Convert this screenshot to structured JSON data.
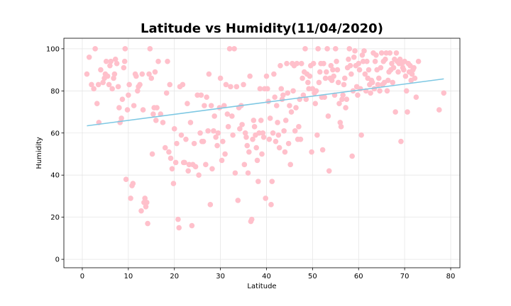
{
  "chart_data": {
    "type": "scatter",
    "title": "Latitude vs Humidity(11/04/2020)",
    "xlabel": "Latitude",
    "ylabel": "Humidity",
    "xlim": [
      -4,
      82
    ],
    "ylim": [
      -4,
      105
    ],
    "xticks": [
      0,
      10,
      20,
      30,
      40,
      50,
      60,
      70,
      80
    ],
    "yticks": [
      0,
      20,
      40,
      60,
      80,
      100
    ],
    "grid": true,
    "legend": "none",
    "colors": {
      "points": "#ffc0cb",
      "regression": "#7ec8e3"
    },
    "regression": {
      "x": [
        1,
        78.5
      ],
      "y": [
        63.4,
        85.7
      ]
    },
    "points": [
      [
        1,
        88
      ],
      [
        1.5,
        96
      ],
      [
        2,
        83
      ],
      [
        2.5,
        81
      ],
      [
        2.8,
        100
      ],
      [
        3.2,
        74
      ],
      [
        3.5,
        83
      ],
      [
        3.6,
        65
      ],
      [
        4,
        90
      ],
      [
        4.5,
        84
      ],
      [
        4.8,
        86
      ],
      [
        5,
        88
      ],
      [
        5.2,
        94
      ],
      [
        5.5,
        87
      ],
      [
        5.8,
        83
      ],
      [
        6,
        92
      ],
      [
        6.2,
        94
      ],
      [
        6.5,
        81
      ],
      [
        6.8,
        86
      ],
      [
        7,
        88
      ],
      [
        7.2,
        95
      ],
      [
        7.5,
        93
      ],
      [
        7.8,
        82
      ],
      [
        8,
        72
      ],
      [
        8.2,
        65
      ],
      [
        8.5,
        67
      ],
      [
        8.7,
        76
      ],
      [
        9,
        91
      ],
      [
        9.2,
        94
      ],
      [
        9.3,
        100
      ],
      [
        9.5,
        38
      ],
      [
        9.8,
        71
      ],
      [
        10,
        78
      ],
      [
        10.2,
        83
      ],
      [
        10.5,
        29
      ],
      [
        10.8,
        35
      ],
      [
        11,
        36
      ],
      [
        11.2,
        73
      ],
      [
        11.5,
        88
      ],
      [
        11.7,
        87
      ],
      [
        12,
        80
      ],
      [
        12.2,
        82
      ],
      [
        12.5,
        83
      ],
      [
        12.8,
        23
      ],
      [
        13,
        88
      ],
      [
        13.2,
        71
      ],
      [
        13.4,
        27
      ],
      [
        13.6,
        29
      ],
      [
        13.8,
        25
      ],
      [
        14,
        27
      ],
      [
        14.2,
        17
      ],
      [
        14.5,
        88
      ],
      [
        14.7,
        100
      ],
      [
        15,
        86
      ],
      [
        15.2,
        50
      ],
      [
        15.4,
        69
      ],
      [
        15.6,
        72
      ],
      [
        15.8,
        89
      ],
      [
        16,
        66
      ],
      [
        16.2,
        72
      ],
      [
        16.5,
        94
      ],
      [
        17,
        69
      ],
      [
        17.5,
        65
      ],
      [
        18,
        53
      ],
      [
        18.3,
        79
      ],
      [
        18.5,
        94
      ],
      [
        18.8,
        51
      ],
      [
        19,
        83
      ],
      [
        19.2,
        48
      ],
      [
        19.5,
        43
      ],
      [
        19.8,
        36
      ],
      [
        20,
        62
      ],
      [
        20.3,
        46
      ],
      [
        20.5,
        55
      ],
      [
        20.8,
        19
      ],
      [
        21,
        15
      ],
      [
        21.2,
        82
      ],
      [
        21.5,
        59
      ],
      [
        21.8,
        83
      ],
      [
        22,
        46
      ],
      [
        22.2,
        46
      ],
      [
        22.5,
        57
      ],
      [
        22.8,
        74
      ],
      [
        23,
        42
      ],
      [
        23.2,
        45
      ],
      [
        23.5,
        65
      ],
      [
        23.8,
        16
      ],
      [
        24,
        45
      ],
      [
        24.3,
        55
      ],
      [
        24.6,
        44
      ],
      [
        25,
        78
      ],
      [
        25.3,
        40
      ],
      [
        25.6,
        60
      ],
      [
        25.8,
        78
      ],
      [
        26,
        56
      ],
      [
        26.3,
        56
      ],
      [
        26.5,
        73
      ],
      [
        26.8,
        45
      ],
      [
        27,
        77
      ],
      [
        27.3,
        61
      ],
      [
        27.5,
        88
      ],
      [
        27.8,
        26
      ],
      [
        28,
        73
      ],
      [
        28.2,
        43
      ],
      [
        28.5,
        61
      ],
      [
        28.7,
        68
      ],
      [
        29,
        58
      ],
      [
        29.3,
        54
      ],
      [
        29.5,
        60
      ],
      [
        29.8,
        72
      ],
      [
        30,
        86
      ],
      [
        30.3,
        47
      ],
      [
        30.5,
        56
      ],
      [
        30.8,
        73
      ],
      [
        31,
        50
      ],
      [
        31.2,
        83
      ],
      [
        31.5,
        69
      ],
      [
        31.7,
        63
      ],
      [
        32,
        100
      ],
      [
        32.2,
        82
      ],
      [
        32.5,
        68
      ],
      [
        32.7,
        59
      ],
      [
        33,
        100
      ],
      [
        33.2,
        41
      ],
      [
        33.5,
        82
      ],
      [
        33.8,
        28
      ],
      [
        34,
        72
      ],
      [
        34.2,
        62
      ],
      [
        34.5,
        73
      ],
      [
        34.7,
        64
      ],
      [
        35,
        83
      ],
      [
        35.2,
        45
      ],
      [
        35.4,
        60
      ],
      [
        35.6,
        58
      ],
      [
        35.8,
        54
      ],
      [
        36,
        41
      ],
      [
        36.2,
        51
      ],
      [
        36.4,
        87
      ],
      [
        36.6,
        18
      ],
      [
        36.8,
        19
      ],
      [
        37,
        57
      ],
      [
        37.2,
        66
      ],
      [
        37.4,
        63
      ],
      [
        37.6,
        59
      ],
      [
        37.8,
        53
      ],
      [
        38,
        47
      ],
      [
        38.2,
        37
      ],
      [
        38.4,
        60
      ],
      [
        38.6,
        81
      ],
      [
        38.8,
        66
      ],
      [
        39,
        50
      ],
      [
        39.2,
        60
      ],
      [
        39.4,
        58
      ],
      [
        39.6,
        81
      ],
      [
        39.8,
        29
      ],
      [
        40,
        87
      ],
      [
        40.2,
        81
      ],
      [
        40.4,
        75
      ],
      [
        40.6,
        57
      ],
      [
        40.8,
        67
      ],
      [
        41,
        26
      ],
      [
        41.2,
        37
      ],
      [
        41.4,
        60
      ],
      [
        41.6,
        88
      ],
      [
        41.8,
        77
      ],
      [
        42,
        56
      ],
      [
        42.2,
        73
      ],
      [
        42.4,
        65
      ],
      [
        42.6,
        59
      ],
      [
        42.8,
        53
      ],
      [
        43,
        92
      ],
      [
        43.2,
        81
      ],
      [
        43.4,
        76
      ],
      [
        43.6,
        78
      ],
      [
        43.8,
        61
      ],
      [
        44,
        51
      ],
      [
        44.2,
        66
      ],
      [
        44.4,
        93
      ],
      [
        44.6,
        79
      ],
      [
        44.8,
        55
      ],
      [
        45,
        73
      ],
      [
        45.2,
        45
      ],
      [
        45.4,
        70
      ],
      [
        45.6,
        93
      ],
      [
        45.8,
        80
      ],
      [
        46,
        92
      ],
      [
        46.2,
        61
      ],
      [
        46.4,
        72
      ],
      [
        46.6,
        93
      ],
      [
        46.8,
        57
      ],
      [
        47,
        63
      ],
      [
        47.2,
        76
      ],
      [
        47.4,
        57
      ],
      [
        47.6,
        93
      ],
      [
        47.8,
        86
      ],
      [
        48,
        78
      ],
      [
        48.2,
        89
      ],
      [
        48.4,
        100
      ],
      [
        48.6,
        76
      ],
      [
        48.8,
        88
      ],
      [
        49,
        84
      ],
      [
        49.2,
        81
      ],
      [
        49.4,
        87
      ],
      [
        49.6,
        92
      ],
      [
        49.8,
        51
      ],
      [
        50,
        81
      ],
      [
        50.2,
        93
      ],
      [
        50.4,
        79
      ],
      [
        50.6,
        74
      ],
      [
        50.8,
        80
      ],
      [
        51,
        59
      ],
      [
        51.2,
        100
      ],
      [
        51.4,
        84
      ],
      [
        51.6,
        89
      ],
      [
        51.8,
        93
      ],
      [
        52,
        77
      ],
      [
        52.2,
        52
      ],
      [
        52.4,
        93
      ],
      [
        52.6,
        77
      ],
      [
        52.8,
        86
      ],
      [
        53,
        89
      ],
      [
        53.2,
        100
      ],
      [
        53.4,
        68
      ],
      [
        53.6,
        42
      ],
      [
        53.8,
        86
      ],
      [
        54,
        92
      ],
      [
        54.2,
        85
      ],
      [
        54.4,
        90
      ],
      [
        54.6,
        87
      ],
      [
        54.8,
        78
      ],
      [
        55,
        100
      ],
      [
        55.2,
        94
      ],
      [
        55.4,
        90
      ],
      [
        55.6,
        84
      ],
      [
        55.8,
        74
      ],
      [
        56,
        65
      ],
      [
        56.2,
        63
      ],
      [
        56.4,
        76
      ],
      [
        56.6,
        78
      ],
      [
        56.8,
        83
      ],
      [
        57,
        86
      ],
      [
        57.2,
        72
      ],
      [
        57.4,
        76
      ],
      [
        57.6,
        91
      ],
      [
        57.8,
        95
      ],
      [
        58,
        100
      ],
      [
        58.2,
        92
      ],
      [
        58.4,
        88
      ],
      [
        58.6,
        49
      ],
      [
        58.8,
        80
      ],
      [
        59,
        96
      ],
      [
        59.2,
        99
      ],
      [
        59.4,
        92
      ],
      [
        59.6,
        82
      ],
      [
        59.8,
        78
      ],
      [
        60,
        93
      ],
      [
        60.2,
        90
      ],
      [
        60.4,
        81
      ],
      [
        60.6,
        59
      ],
      [
        60.8,
        97
      ],
      [
        61,
        94
      ],
      [
        61.2,
        99
      ],
      [
        61.4,
        88
      ],
      [
        61.6,
        80
      ],
      [
        61.8,
        94
      ],
      [
        62,
        86
      ],
      [
        62.2,
        90
      ],
      [
        62.4,
        83
      ],
      [
        62.6,
        79
      ],
      [
        62.8,
        85
      ],
      [
        63,
        84
      ],
      [
        63.2,
        98
      ],
      [
        63.4,
        81
      ],
      [
        63.6,
        94
      ],
      [
        63.8,
        97
      ],
      [
        64,
        90
      ],
      [
        64.2,
        83
      ],
      [
        64.4,
        86
      ],
      [
        64.6,
        80
      ],
      [
        64.8,
        91
      ],
      [
        65,
        98
      ],
      [
        65.2,
        83
      ],
      [
        65.4,
        94
      ],
      [
        65.6,
        84
      ],
      [
        65.8,
        95
      ],
      [
        66,
        98
      ],
      [
        66.2,
        80
      ],
      [
        66.4,
        85
      ],
      [
        66.6,
        89
      ],
      [
        66.8,
        98
      ],
      [
        67,
        90
      ],
      [
        67.2,
        93
      ],
      [
        67.4,
        84
      ],
      [
        67.6,
        91
      ],
      [
        67.8,
        95
      ],
      [
        68,
        70
      ],
      [
        68.2,
        98
      ],
      [
        68.4,
        94
      ],
      [
        68.6,
        89
      ],
      [
        68.8,
        93
      ],
      [
        69,
        95
      ],
      [
        69.2,
        56
      ],
      [
        69.4,
        93
      ],
      [
        69.6,
        91
      ],
      [
        69.8,
        90
      ],
      [
        70,
        94
      ],
      [
        70.2,
        87
      ],
      [
        70.4,
        80
      ],
      [
        70.6,
        70
      ],
      [
        70.8,
        93
      ],
      [
        71,
        89
      ],
      [
        71.2,
        92
      ],
      [
        71.4,
        85
      ],
      [
        71.6,
        88
      ],
      [
        71.8,
        90
      ],
      [
        72,
        91
      ],
      [
        72.2,
        86
      ],
      [
        72.5,
        77
      ],
      [
        73,
        94
      ],
      [
        77.5,
        71
      ],
      [
        78.5,
        79
      ]
    ]
  }
}
